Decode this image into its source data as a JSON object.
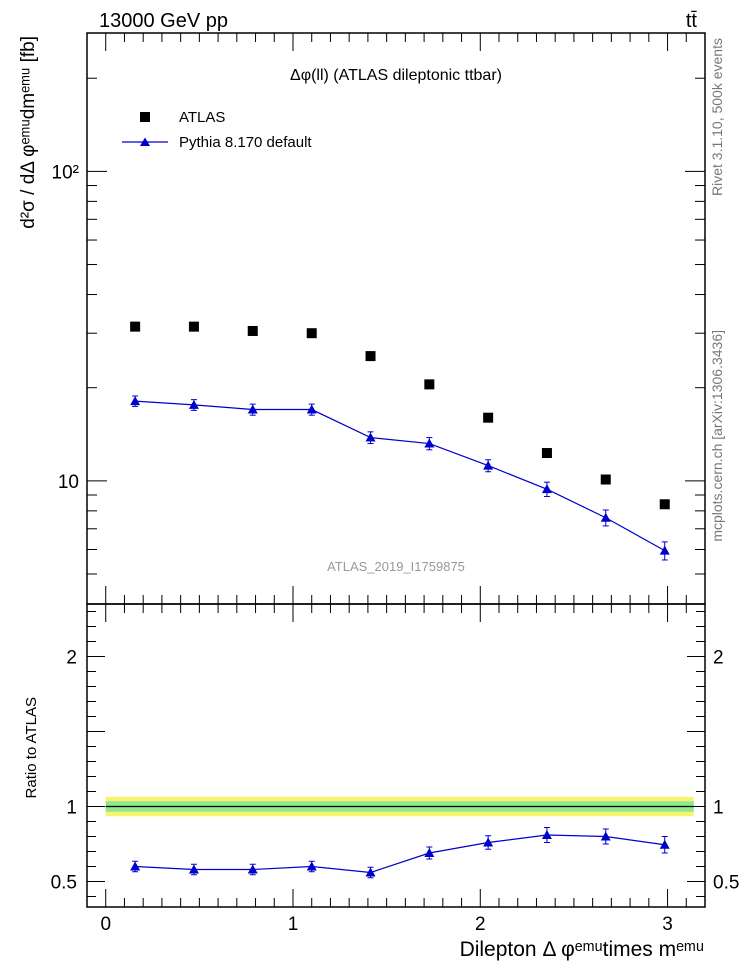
{
  "header": {
    "energy_label": "13000 GeV pp",
    "process_label": "tt̄"
  },
  "side_labels": {
    "rivet": "Rivet 3.1.10,  500k events",
    "mcplots": "mcplots.cern.ch [arXiv:1306.3436]"
  },
  "chart_data": [
    {
      "type": "scatter",
      "title": "Δφ(ll) (ATLAS dileptonic ttbar)",
      "watermark": "ATLAS_2019_I1759875",
      "ylabel": "d²σ / dΔ φᵉᵐᵘdmᵉᵐᵘ [fb]",
      "yscale": "log",
      "ylim": [
        4,
        280
      ],
      "xlim": [
        -0.1,
        3.2
      ],
      "y_tick_labels": [
        {
          "value": 10,
          "label": "10"
        },
        {
          "value": 100,
          "label": "10²"
        }
      ],
      "legend_position": "top-left",
      "series": [
        {
          "name": "ATLAS",
          "color": "#000000",
          "marker": "square",
          "x": [
            0.157,
            0.471,
            0.785,
            1.1,
            1.414,
            1.728,
            2.042,
            2.356,
            2.67,
            2.985
          ],
          "y": [
            31.5,
            31.5,
            30.5,
            30.0,
            25.3,
            20.5,
            16.0,
            12.3,
            10.1,
            8.4
          ]
        },
        {
          "name": "Pythia 8.170 default",
          "color": "#0000cc",
          "marker": "triangle",
          "x": [
            0.157,
            0.471,
            0.785,
            1.1,
            1.414,
            1.728,
            2.042,
            2.356,
            2.67,
            2.985
          ],
          "y": [
            18.1,
            17.6,
            17.0,
            17.0,
            13.8,
            13.2,
            11.2,
            9.4,
            7.6,
            5.95
          ],
          "yerr": [
            0.7,
            0.7,
            0.7,
            0.7,
            0.6,
            0.6,
            0.5,
            0.5,
            0.45,
            0.4
          ]
        }
      ]
    },
    {
      "type": "scatter",
      "ylabel": "Ratio to ATLAS",
      "ylim": [
        0.33,
        2.35
      ],
      "xlim": [
        -0.1,
        3.2
      ],
      "y_ticks": [
        0.5,
        1,
        2
      ],
      "y_tick_labels": [
        "0.5",
        "1",
        "2"
      ],
      "x_ticks": [
        0,
        1,
        2,
        3
      ],
      "x_tick_labels": [
        "0",
        "1",
        "2",
        "3"
      ],
      "xlabel": "Dilepton Δ φᵉᵐᵘtimes mᵉᵐᵘ",
      "band_inner_color": "#8ee88e",
      "band_outer_color": "#f5f570",
      "band_inner_halfwidth": 0.035,
      "band_outer_halfwidth": 0.065,
      "series": [
        {
          "name": "Pythia 8.170 default",
          "color": "#0000cc",
          "x": [
            0.157,
            0.471,
            0.785,
            1.1,
            1.414,
            1.728,
            2.042,
            2.356,
            2.67,
            2.985
          ],
          "y": [
            0.6,
            0.58,
            0.58,
            0.6,
            0.56,
            0.69,
            0.76,
            0.81,
            0.8,
            0.745
          ],
          "yerr": [
            0.035,
            0.035,
            0.035,
            0.035,
            0.035,
            0.04,
            0.045,
            0.05,
            0.05,
            0.055
          ]
        }
      ]
    }
  ]
}
